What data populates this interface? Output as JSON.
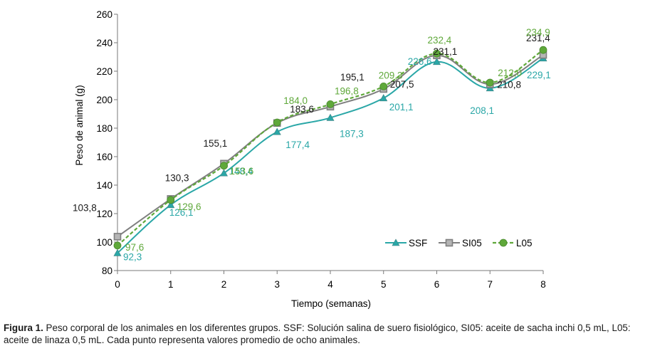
{
  "chart_data": {
    "type": "line",
    "xlabel": "Tiempo (semanas)",
    "ylabel": "Peso de animal (g)",
    "x": [
      0,
      1,
      2,
      3,
      4,
      5,
      6,
      7,
      8
    ],
    "xlim": [
      0,
      8
    ],
    "ylim": [
      80,
      260
    ],
    "yticks": [
      80,
      100,
      120,
      140,
      160,
      180,
      200,
      220,
      240,
      260
    ],
    "grid": false,
    "legend_position": "bottom-right",
    "series": [
      {
        "name": "SSF",
        "color": "#2aa7a7",
        "marker": "triangle",
        "line": "solid",
        "values": [
          92.3,
          126.1,
          148.4,
          177.4,
          187.3,
          201.1,
          226.6,
          208.1,
          229.1
        ],
        "labels": [
          "92,3",
          "126,1",
          "148,4",
          "177,4",
          "187,3",
          "201,1",
          "226,6",
          "208,1",
          "229,1"
        ]
      },
      {
        "name": "SI05",
        "color": "#7f7f7f",
        "marker": "square",
        "line": "solid",
        "values": [
          103.8,
          130.3,
          155.1,
          183.6,
          195.1,
          207.5,
          231.1,
          210.8,
          231.4
        ],
        "labels": [
          "103,8",
          "130,3",
          "155,1",
          "183,6",
          "195,1",
          "207,5",
          "231,1",
          "210,8",
          "231,4"
        ]
      },
      {
        "name": "L05",
        "color": "#5fa83a",
        "marker": "circle",
        "line": "dashed",
        "values": [
          97.6,
          129.6,
          153.6,
          184.0,
          196.8,
          209.3,
          232.4,
          212.0,
          234.9
        ],
        "labels": [
          "97,6",
          "129,6",
          "153,6",
          "184,0",
          "196,8",
          "209,3",
          "232,4",
          "212,0",
          "234,9"
        ]
      }
    ]
  },
  "caption": {
    "label": "Figura 1.",
    "text": " Peso corporal de los animales en los diferentes grupos. SSF: Solución salina de suero fisiológico, SI05: aceite de sacha inchi 0,5 mL, L05: aceite de linaza 0,5 mL. Cada punto representa valores promedio de ocho animales."
  }
}
